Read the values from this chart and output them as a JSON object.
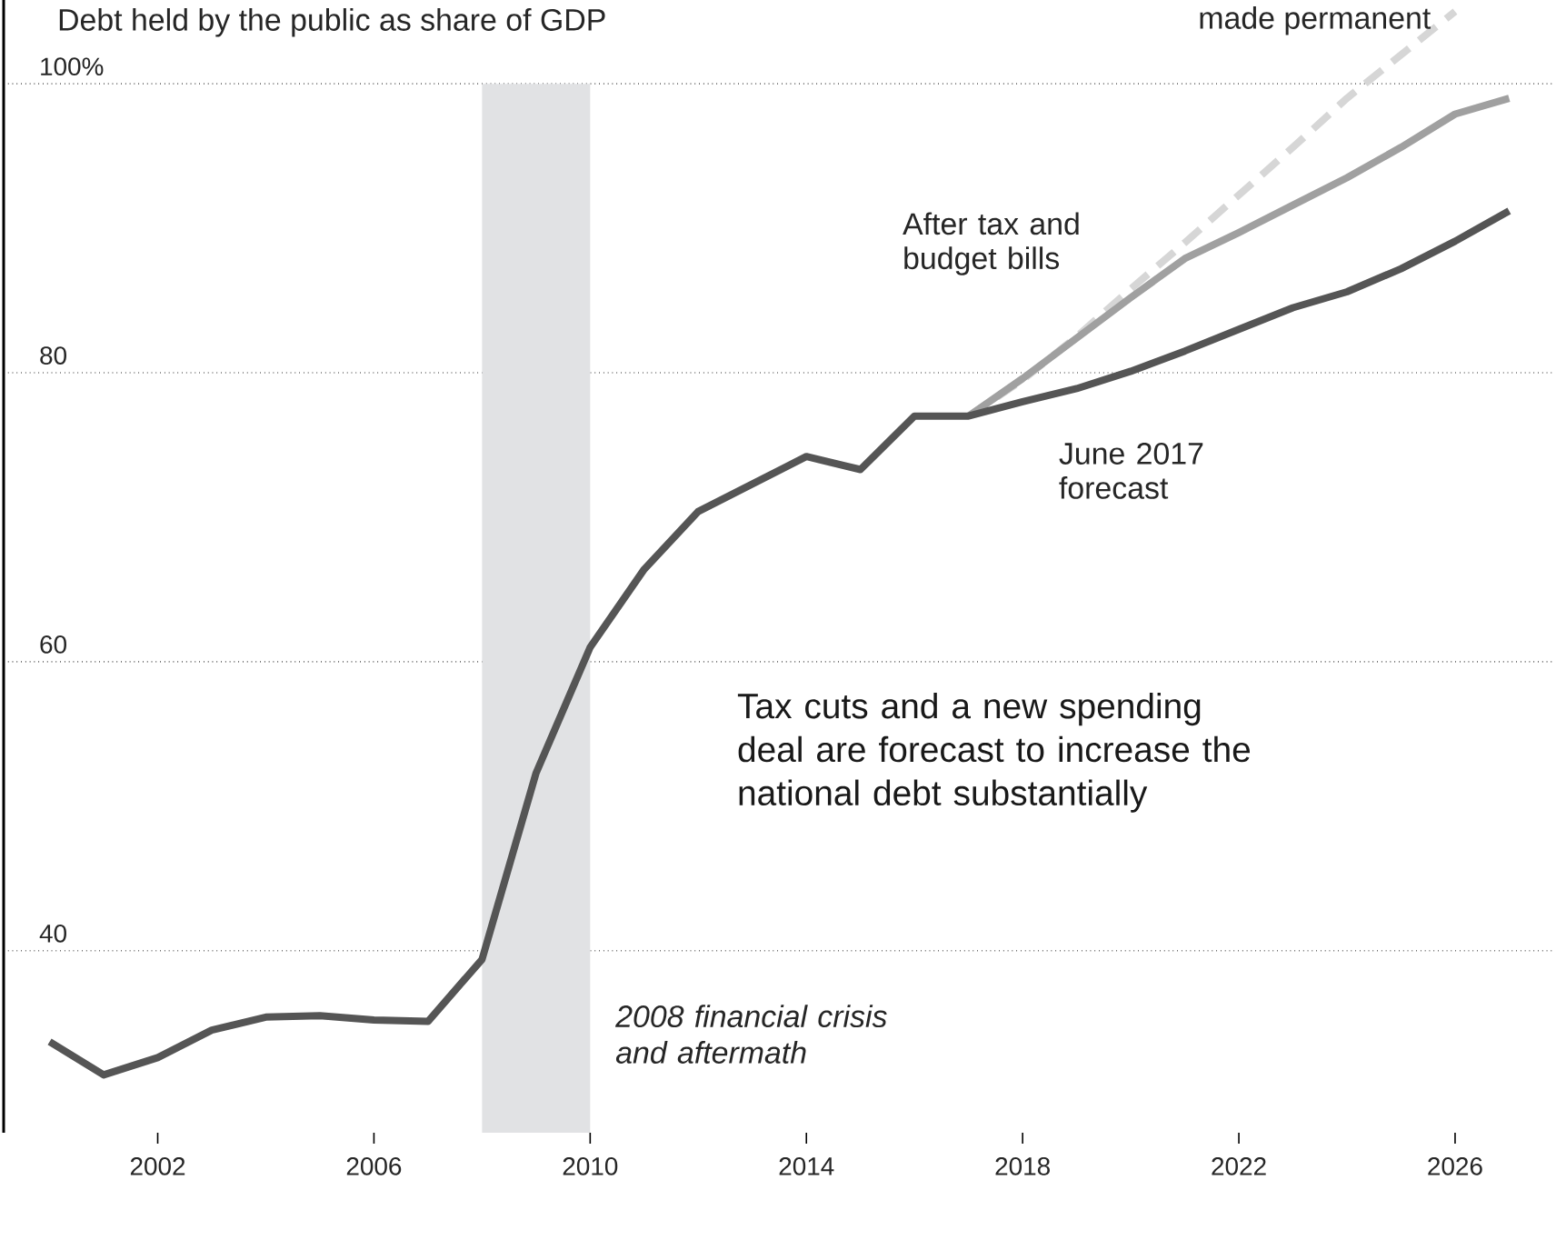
{
  "chart_data": {
    "type": "line",
    "title": "Debt held by the public as share of GDP",
    "annotations": [
      "Tax cuts and a new spending deal are forecast to increase the national debt substantially"
    ],
    "xlim": [
      1999.15,
      2027.8
    ],
    "ylim": [
      27.4,
      105.8
    ],
    "xticks": [
      2002,
      2006,
      2010,
      2014,
      2018,
      2022,
      2026
    ],
    "yticks": [
      40,
      60,
      80,
      {
        "value": 100,
        "label": "100%"
      }
    ],
    "grid": "y",
    "bands": [
      {
        "axis": "x",
        "from": 2008,
        "to": 2010,
        "label": "2008 financial crisis and aftermath",
        "color": "#e1e2e4"
      }
    ],
    "series": [
      {
        "name": "made permanent",
        "color": "#d6d6d6",
        "line_style": "dashed",
        "x": [
          2017,
          2018,
          2019,
          2020,
          2021,
          2022,
          2023,
          2024,
          2025,
          2026
        ],
        "values": [
          77.0,
          79.5,
          82.5,
          85.8,
          89.0,
          92.3,
          95.6,
          99.0,
          102.0,
          105.0
        ]
      },
      {
        "name": "After tax and budget bills",
        "color": "#a0a0a0",
        "x": [
          2017,
          2018,
          2019,
          2020,
          2021,
          2022,
          2023,
          2024,
          2025,
          2026,
          2027
        ],
        "values": [
          77.0,
          79.6,
          82.4,
          85.2,
          87.9,
          89.7,
          91.6,
          93.5,
          95.6,
          97.9,
          99.0
        ]
      },
      {
        "name": "June 2017 forecast",
        "color": "#555555",
        "x": [
          2000,
          2001,
          2002,
          2003,
          2004,
          2005,
          2006,
          2007,
          2008,
          2009,
          2010,
          2011,
          2012,
          2013,
          2014,
          2015,
          2016,
          2017,
          2018,
          2019,
          2020,
          2021,
          2022,
          2023,
          2024,
          2025,
          2026,
          2027
        ],
        "values": [
          33.7,
          31.4,
          32.6,
          34.5,
          35.4,
          35.5,
          35.2,
          35.1,
          39.4,
          52.3,
          61.0,
          66.4,
          70.4,
          72.3,
          74.2,
          73.3,
          77.0,
          77.0,
          78.0,
          78.9,
          80.1,
          81.5,
          83.0,
          84.5,
          85.6,
          87.2,
          89.1,
          91.2
        ]
      }
    ]
  }
}
